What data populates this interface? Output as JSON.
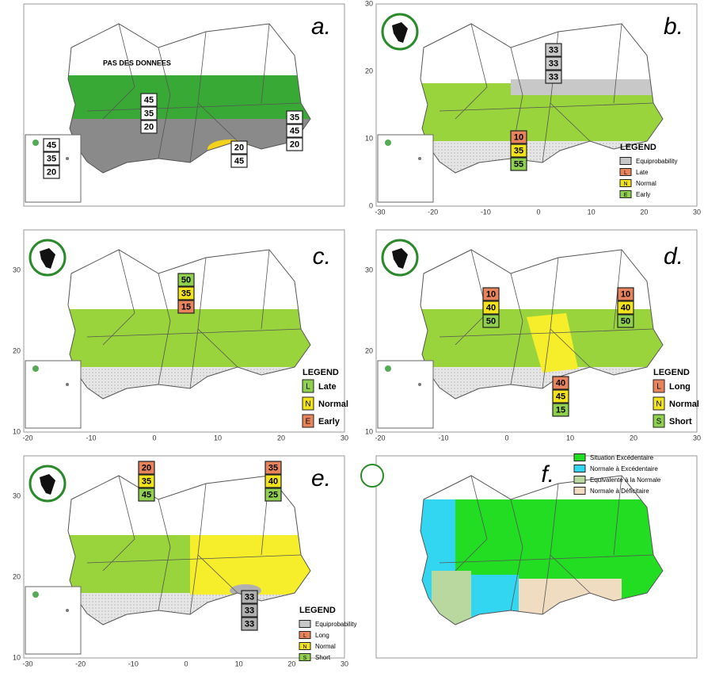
{
  "panels": [
    {
      "label": "a.",
      "note": "PAS DES DONNEES",
      "boxes": [
        {
          "values": [
            45,
            35,
            20
          ],
          "colors": [
            "#ffffff",
            "#ffffff",
            "#ffffff"
          ]
        },
        {
          "values": [
            45,
            35,
            20
          ],
          "colors": [
            "#ffffff",
            "#ffffff",
            "#ffffff"
          ]
        },
        {
          "values": [
            35,
            45,
            20
          ],
          "colors": [
            "#ffffff",
            "#ffffff",
            "#ffffff"
          ]
        },
        {
          "values": [
            20,
            45
          ],
          "colors": [
            "#ffffff",
            "#ffffff"
          ]
        }
      ]
    },
    {
      "label": "b.",
      "boxes": [
        {
          "values": [
            33,
            33,
            33
          ],
          "colors": [
            "#c8c8c8",
            "#c8c8c8",
            "#c8c8c8"
          ]
        },
        {
          "values": [
            10,
            35,
            55
          ],
          "colors": [
            "#e8845c",
            "#f2e21c",
            "#8fd14f"
          ]
        }
      ],
      "legend": {
        "title": "LEGEND",
        "items": [
          {
            "text": "Equiprobability",
            "color": "#c8c8c8"
          },
          {
            "key": "L",
            "text": "Late",
            "color": "#e8845c"
          },
          {
            "key": "N",
            "text": "Normal",
            "color": "#f2e21c"
          },
          {
            "key": "E",
            "text": "Early",
            "color": "#8fd14f"
          }
        ]
      },
      "xticks": [
        -30,
        -20,
        -10,
        0,
        10,
        20,
        30
      ],
      "yticks": [
        0,
        10,
        20,
        30
      ]
    },
    {
      "label": "c.",
      "boxes": [
        {
          "values": [
            50,
            35,
            15
          ],
          "colors": [
            "#8fd14f",
            "#f2e21c",
            "#e8845c"
          ]
        }
      ],
      "legend": {
        "title": "LEGEND",
        "items": [
          {
            "key": "L",
            "text": "Late",
            "color": "#8fd14f"
          },
          {
            "key": "N",
            "text": "Normal",
            "color": "#f2e21c"
          },
          {
            "key": "E",
            "text": "Early",
            "color": "#e8845c"
          }
        ]
      },
      "xticks": [
        -20,
        -10,
        0,
        10,
        20,
        30
      ],
      "yticks": [
        10,
        20,
        30
      ]
    },
    {
      "label": "d.",
      "boxes": [
        {
          "values": [
            10,
            40,
            50
          ],
          "colors": [
            "#e8845c",
            "#f2e21c",
            "#8fd14f"
          ]
        },
        {
          "values": [
            10,
            40,
            50
          ],
          "colors": [
            "#e8845c",
            "#f2e21c",
            "#8fd14f"
          ]
        },
        {
          "values": [
            40,
            45,
            15
          ],
          "colors": [
            "#e8845c",
            "#f2e21c",
            "#8fd14f"
          ]
        }
      ],
      "legend": {
        "title": "LEGEND",
        "items": [
          {
            "key": "L",
            "text": "Long",
            "color": "#e8845c"
          },
          {
            "key": "N",
            "text": "Normal",
            "color": "#f2e21c"
          },
          {
            "key": "S",
            "text": "Short",
            "color": "#8fd14f"
          }
        ]
      },
      "xticks": [
        -20,
        -10,
        0,
        10,
        20,
        30
      ],
      "yticks": [
        10,
        20,
        30
      ]
    },
    {
      "label": "e.",
      "boxes": [
        {
          "values": [
            20,
            35,
            45
          ],
          "colors": [
            "#e8845c",
            "#f2e21c",
            "#8fd14f"
          ]
        },
        {
          "values": [
            35,
            40,
            25
          ],
          "colors": [
            "#e8845c",
            "#f2e21c",
            "#8fd14f"
          ]
        },
        {
          "values": [
            33,
            33,
            33
          ],
          "colors": [
            "#b0b0b0",
            "#b0b0b0",
            "#b0b0b0"
          ]
        }
      ],
      "legend": {
        "title": "LEGEND",
        "items": [
          {
            "text": "Equiprobability",
            "color": "#c8c8c8"
          },
          {
            "key": "L",
            "text": "Long",
            "color": "#e8845c"
          },
          {
            "key": "N",
            "text": "Normal",
            "color": "#f2e21c"
          },
          {
            "key": "S",
            "text": "Short",
            "color": "#8fd14f"
          }
        ]
      },
      "xticks": [
        -30,
        -20,
        -10,
        0,
        10,
        20,
        30
      ],
      "yticks": [
        10,
        20,
        30
      ]
    },
    {
      "label": "f.",
      "legend": {
        "items": [
          {
            "text": "Situation Excédentaire",
            "color": "#22dd22"
          },
          {
            "text": "Normale à Excédentaire",
            "color": "#33d6f0"
          },
          {
            "text": "Equivalente à la Normale",
            "color": "#b8d8a0"
          },
          {
            "text": "Normale à Déficitaire",
            "color": "#f0dcc0"
          }
        ]
      }
    }
  ]
}
